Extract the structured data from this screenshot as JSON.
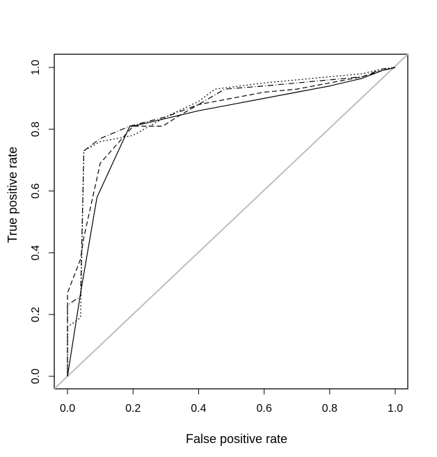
{
  "chart_data": {
    "type": "line",
    "xlabel": "False positive rate",
    "ylabel": "True positive rate",
    "xlim": [
      0,
      1
    ],
    "ylim": [
      0,
      1
    ],
    "xticks": [
      "0.0",
      "0.2",
      "0.4",
      "0.6",
      "0.8",
      "1.0"
    ],
    "yticks": [
      "0.0",
      "0.2",
      "0.4",
      "0.6",
      "0.8",
      "1.0"
    ],
    "grid": false,
    "legend": "none",
    "diagonal": {
      "x": [
        0,
        1
      ],
      "y": [
        0,
        1
      ],
      "color": "#bdbdbd"
    },
    "series": [
      {
        "dash": "solid",
        "x": [
          0,
          0.04,
          0.09,
          0.19,
          0.2,
          0.3,
          0.4,
          0.5,
          0.6,
          0.7,
          0.8,
          0.9,
          0.96,
          1.0
        ],
        "y": [
          0,
          0.27,
          0.58,
          0.81,
          0.81,
          0.835,
          0.86,
          0.88,
          0.9,
          0.92,
          0.94,
          0.965,
          0.99,
          1.0
        ]
      },
      {
        "dash": "dashed",
        "x": [
          0,
          0,
          0.04,
          0.05,
          0.1,
          0.2,
          0.29,
          0.35,
          0.4,
          0.5,
          0.6,
          0.7,
          0.8,
          0.9,
          0.96,
          1.0
        ],
        "y": [
          0,
          0.27,
          0.38,
          0.45,
          0.69,
          0.81,
          0.81,
          0.85,
          0.88,
          0.9,
          0.92,
          0.93,
          0.95,
          0.97,
          0.99,
          1.0
        ],
        "dasharray": "7,4"
      },
      {
        "dash": "dotted",
        "x": [
          0,
          0,
          0.04,
          0.05,
          0.1,
          0.2,
          0.3,
          0.4,
          0.45,
          0.6,
          0.7,
          0.8,
          0.9,
          0.96,
          1.0
        ],
        "y": [
          0,
          0.16,
          0.19,
          0.73,
          0.76,
          0.78,
          0.84,
          0.89,
          0.93,
          0.95,
          0.96,
          0.97,
          0.98,
          0.995,
          1.0
        ],
        "dasharray": "2,3"
      },
      {
        "dash": "dotdash",
        "x": [
          0,
          0,
          0.04,
          0.05,
          0.1,
          0.19,
          0.3,
          0.4,
          0.48,
          0.6,
          0.7,
          0.8,
          0.9,
          0.96,
          1.0
        ],
        "y": [
          0,
          0.23,
          0.26,
          0.73,
          0.77,
          0.81,
          0.84,
          0.88,
          0.93,
          0.94,
          0.95,
          0.96,
          0.97,
          0.995,
          1.0
        ],
        "dasharray": "1,3,8,3"
      }
    ]
  }
}
